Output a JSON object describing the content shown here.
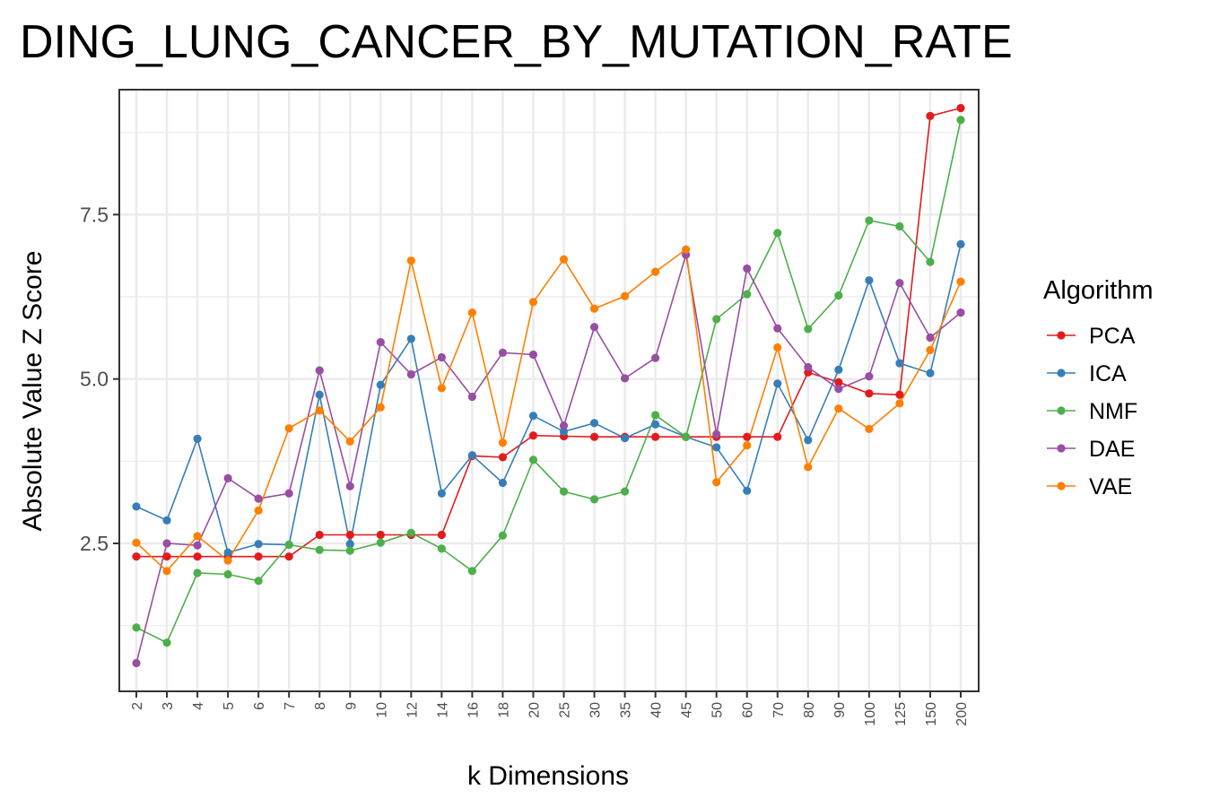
{
  "chart_data": {
    "type": "line",
    "title": "DING_LUNG_CANCER_BY_MUTATION_RATE",
    "xlabel": "k Dimensions",
    "ylabel": "Absolute Value Z Score",
    "categories": [
      "2",
      "3",
      "4",
      "5",
      "6",
      "7",
      "8",
      "9",
      "10",
      "12",
      "14",
      "16",
      "18",
      "20",
      "25",
      "30",
      "35",
      "40",
      "45",
      "50",
      "60",
      "70",
      "80",
      "90",
      "100",
      "125",
      "150",
      "200"
    ],
    "ylim": [
      0.25,
      9.4
    ],
    "yticks": [
      2.5,
      5.0,
      7.5
    ],
    "ytick_labels": [
      "2.5",
      "5.0",
      "7.5"
    ],
    "grid": true,
    "legend_title": "Algorithm",
    "legend_position": "right",
    "series": [
      {
        "name": "PCA",
        "color": "#e41a1c",
        "values": [
          2.3,
          2.3,
          2.3,
          2.3,
          2.3,
          2.3,
          2.63,
          2.63,
          2.63,
          2.63,
          2.63,
          3.83,
          3.81,
          4.14,
          4.13,
          4.12,
          4.12,
          4.12,
          4.12,
          4.12,
          4.12,
          4.12,
          5.1,
          4.95,
          4.78,
          4.76,
          9.0,
          9.12
        ]
      },
      {
        "name": "ICA",
        "color": "#377eb8",
        "values": [
          3.06,
          2.85,
          4.09,
          2.36,
          2.49,
          2.48,
          4.76,
          2.49,
          4.91,
          5.61,
          3.26,
          3.84,
          3.42,
          4.44,
          4.2,
          4.33,
          4.1,
          4.31,
          4.12,
          3.96,
          3.3,
          4.93,
          4.07,
          5.14,
          6.5,
          5.24,
          5.09,
          7.05
        ]
      },
      {
        "name": "NMF",
        "color": "#4daf4a",
        "values": [
          1.22,
          0.99,
          2.05,
          2.03,
          1.93,
          2.48,
          2.4,
          2.39,
          2.51,
          2.66,
          2.42,
          2.08,
          2.62,
          3.77,
          3.29,
          3.17,
          3.29,
          4.45,
          4.12,
          5.91,
          6.29,
          7.22,
          5.76,
          6.27,
          7.41,
          7.32,
          6.78,
          8.94
        ]
      },
      {
        "name": "DAE",
        "color": "#984ea3",
        "values": [
          0.68,
          2.5,
          2.47,
          3.49,
          3.18,
          3.26,
          5.13,
          3.37,
          5.56,
          5.07,
          5.33,
          4.73,
          5.4,
          5.37,
          4.29,
          5.79,
          5.01,
          5.32,
          6.89,
          4.16,
          6.68,
          5.77,
          5.18,
          4.85,
          5.04,
          6.46,
          5.63,
          6.01
        ]
      },
      {
        "name": "VAE",
        "color": "#ff7f00",
        "values": [
          2.51,
          2.08,
          2.61,
          2.24,
          3.0,
          4.25,
          4.52,
          4.05,
          4.57,
          6.8,
          4.86,
          6.01,
          4.03,
          6.17,
          6.82,
          6.07,
          6.26,
          6.63,
          6.97,
          3.43,
          3.99,
          5.48,
          3.66,
          4.55,
          4.24,
          4.63,
          5.44,
          6.48
        ]
      }
    ]
  }
}
